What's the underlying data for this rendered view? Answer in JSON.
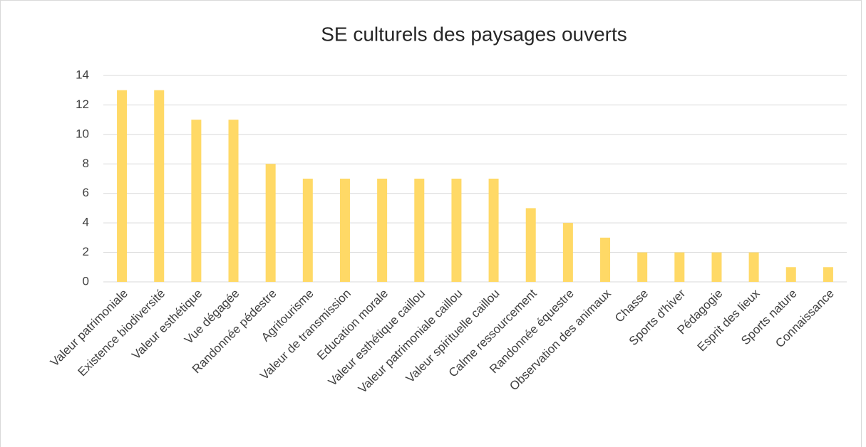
{
  "chart_data": {
    "type": "bar",
    "title": "SE culturels des paysages ouverts",
    "categories": [
      "Valeur patrimoniale",
      "Existence biodiversité",
      "Valeur esthétique",
      "Vue dégagée",
      "Randonnée pédestre",
      "Agritourisme",
      "Valeur de transmission",
      "Education morale",
      "Valeur esthétique caillou",
      "Valeur patrimoniale caillou",
      "Valeur spirituelle caillou",
      "Calme ressourcement",
      "Randonnée équestre",
      "Observation des animaux",
      "Chasse",
      "Sports d'hiver",
      "Pédagogie",
      "Esprit des lieux",
      "Sports nature",
      "Connaissance"
    ],
    "values": [
      13,
      13,
      11,
      11,
      8,
      7,
      7,
      7,
      7,
      7,
      7,
      5,
      4,
      3,
      2,
      2,
      2,
      2,
      1,
      1
    ],
    "color": "#ffd966",
    "ylim": [
      0,
      14
    ],
    "yticks": [
      0,
      2,
      4,
      6,
      8,
      10,
      12,
      14
    ],
    "grid": true
  }
}
